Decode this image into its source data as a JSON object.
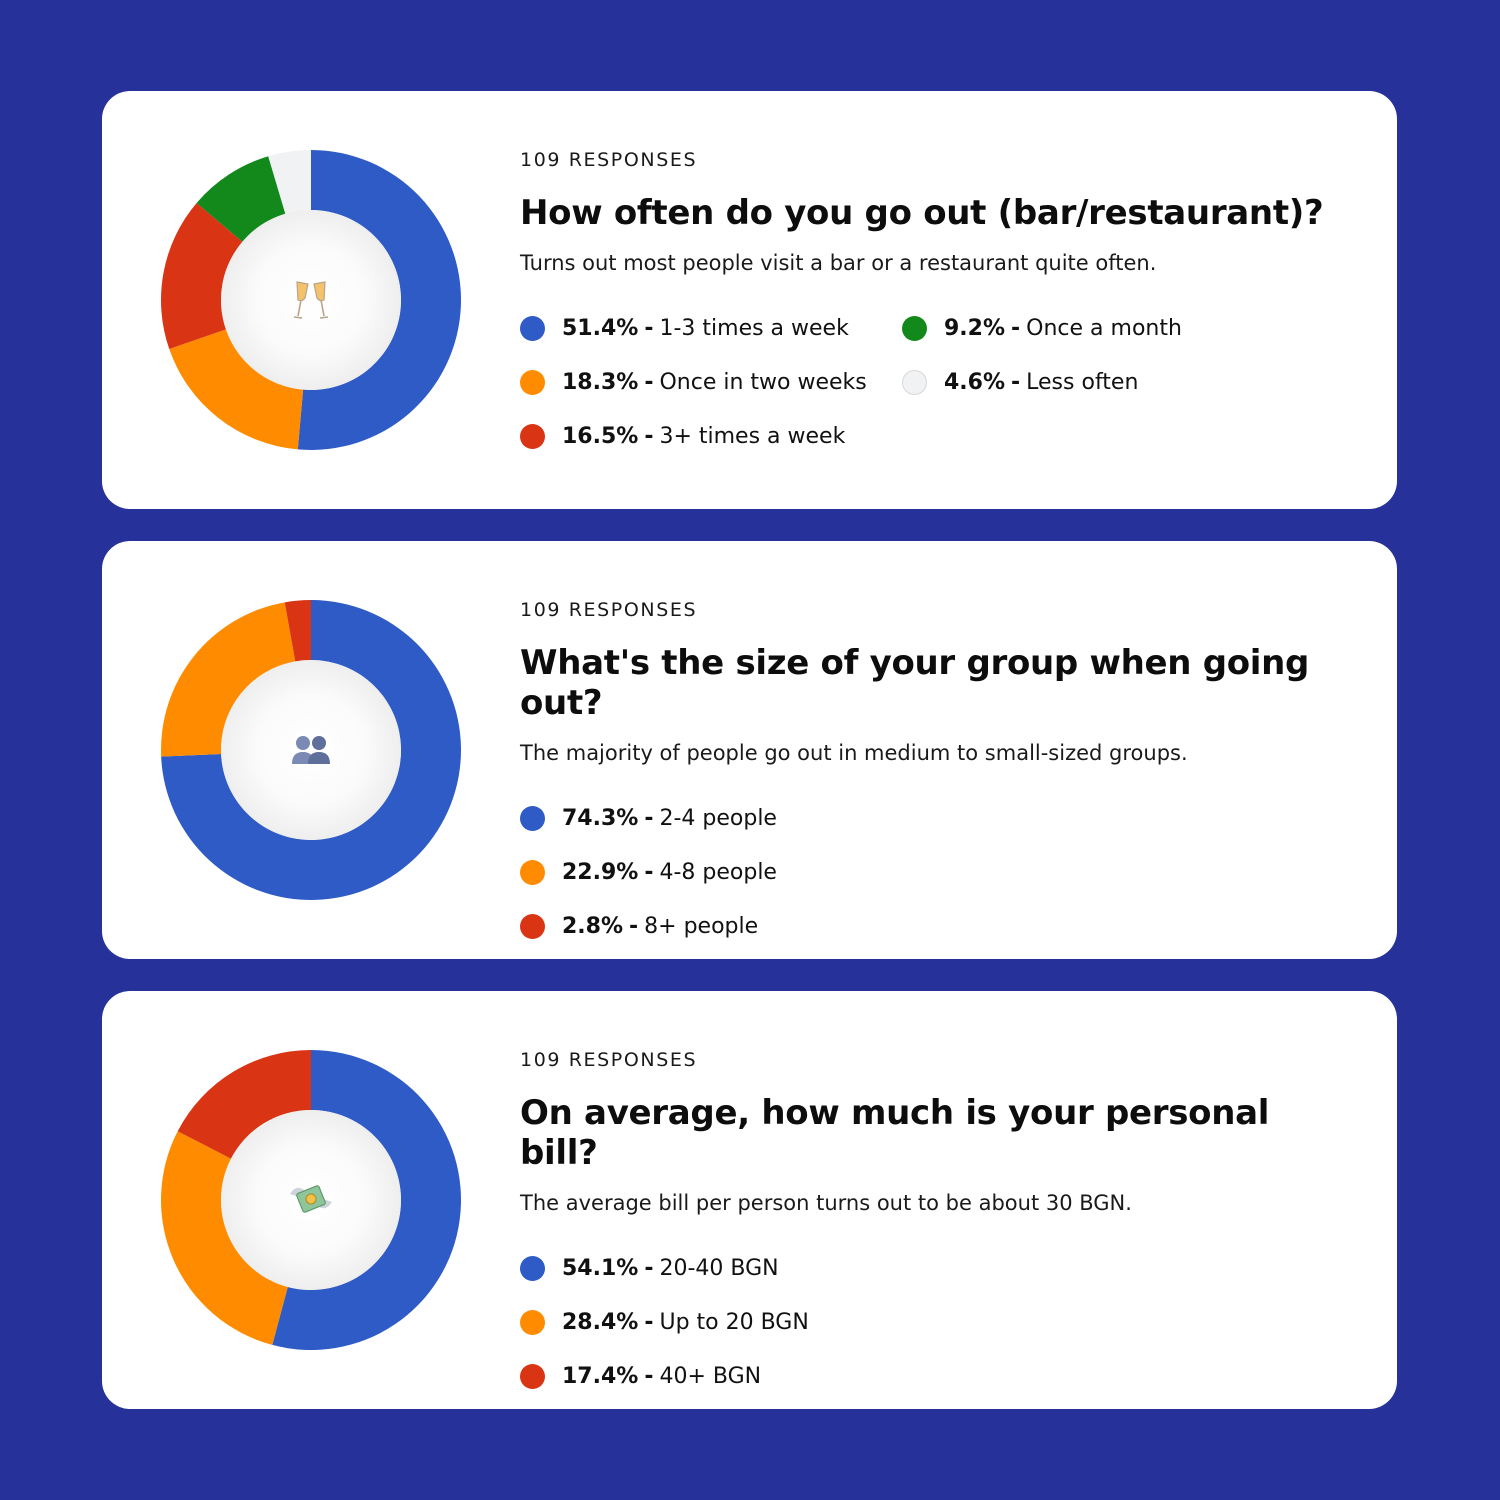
{
  "colors": {
    "blue": "#2e5bc6",
    "orange": "#ff8c00",
    "red": "#d93515",
    "green": "#13891c",
    "light": "#f1f2f4"
  },
  "cards": [
    {
      "responses": "109 RESPONSES",
      "title": "How often do you go out (bar/restaurant)?",
      "subtitle": "Turns out most people visit a bar or a restaurant quite often.",
      "icon": "champagne-glasses-icon",
      "legend": [
        {
          "pct": "51.4%",
          "label": "1-3 times a week",
          "color": "#2e5bc6"
        },
        {
          "pct": "18.3%",
          "label": "Once in two weeks",
          "color": "#ff8c00"
        },
        {
          "pct": "16.5%",
          "label": "3+ times a week",
          "color": "#d93515"
        },
        {
          "pct": "9.2%",
          "label": "Once a month",
          "color": "#13891c"
        },
        {
          "pct": "4.6%",
          "label": "Less often",
          "color": "#f1f2f4"
        }
      ]
    },
    {
      "responses": "109 RESPONSES",
      "title": "What's the size of your group when going out?",
      "subtitle": "The majority of people go out in medium to small-sized groups.",
      "icon": "people-icon",
      "legend": [
        {
          "pct": "74.3%",
          "label": "2-4 people",
          "color": "#2e5bc6"
        },
        {
          "pct": "22.9%",
          "label": "4-8 people",
          "color": "#ff8c00"
        },
        {
          "pct": "2.8%",
          "label": "8+ people",
          "color": "#d93515"
        }
      ]
    },
    {
      "responses": "109 RESPONSES",
      "title": "On average, how much is your personal bill?",
      "subtitle": "The average bill per person turns out to be about 30 BGN.",
      "icon": "money-with-wings-icon",
      "legend": [
        {
          "pct": "54.1%",
          "label": "20-40 BGN",
          "color": "#2e5bc6"
        },
        {
          "pct": "28.4%",
          "label": "Up to 20 BGN",
          "color": "#ff8c00"
        },
        {
          "pct": "17.4%",
          "label": "40+ BGN",
          "color": "#d93515"
        }
      ]
    }
  ],
  "chart_data": [
    {
      "type": "pie",
      "title": "How often do you go out (bar/restaurant)?",
      "categories": [
        "1-3 times a week",
        "Once in two weeks",
        "3+ times a week",
        "Once a month",
        "Less often"
      ],
      "values": [
        51.4,
        18.3,
        16.5,
        9.2,
        4.6
      ],
      "colors": [
        "#2e5bc6",
        "#ff8c00",
        "#d93515",
        "#13891c",
        "#f1f2f4"
      ]
    },
    {
      "type": "pie",
      "title": "What's the size of your group when going out?",
      "categories": [
        "2-4 people",
        "4-8 people",
        "8+ people"
      ],
      "values": [
        74.3,
        22.9,
        2.8
      ],
      "colors": [
        "#2e5bc6",
        "#ff8c00",
        "#d93515"
      ]
    },
    {
      "type": "pie",
      "title": "On average, how much is your personal bill?",
      "categories": [
        "20-40 BGN",
        "Up to 20 BGN",
        "40+ BGN"
      ],
      "values": [
        54.1,
        28.4,
        17.4
      ],
      "colors": [
        "#2e5bc6",
        "#ff8c00",
        "#d93515"
      ]
    }
  ]
}
